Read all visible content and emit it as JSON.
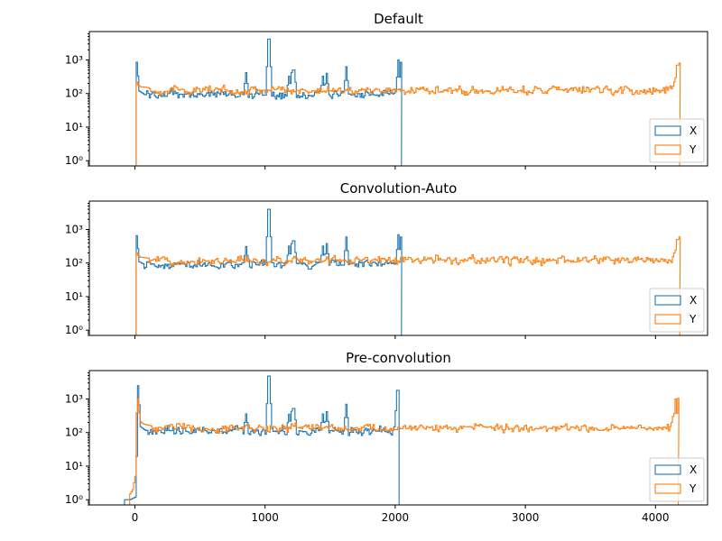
{
  "chart_data": [
    {
      "type": "histogram",
      "title": "Default",
      "scale_y": "log",
      "ylim": [
        0.7,
        7000
      ],
      "xlim": [
        -350,
        4400
      ],
      "xticks": [
        0,
        1000,
        2000,
        3000,
        4000
      ],
      "xtick_labels": [],
      "yticks": [
        1,
        10,
        100,
        1000
      ],
      "ytick_labels": [
        "10⁰",
        "10¹",
        "10²",
        "10³"
      ],
      "legend_position": "lower-right",
      "series": [
        {
          "name": "X",
          "color": "#1f77b4",
          "x_range": [
            0,
            2048
          ],
          "baseline": 95,
          "edge_profile": [
            [
              0,
              0.5
            ],
            [
              8,
              1000
            ],
            [
              16,
              550
            ],
            [
              28,
              120
            ],
            [
              60,
              100
            ]
          ],
          "spikes": [
            [
              850,
              420
            ],
            [
              1024,
              4200
            ],
            [
              1180,
              330
            ],
            [
              1200,
              420
            ],
            [
              1215,
              500
            ],
            [
              1440,
              330
            ],
            [
              1470,
              400
            ],
            [
              1620,
              630
            ],
            [
              2020,
              1000
            ],
            [
              2040,
              850
            ]
          ],
          "tail_end": 2048
        },
        {
          "name": "Y",
          "color": "#ff7f0e",
          "x_range": [
            0,
            4186
          ],
          "baseline": 125,
          "edge_profile": [
            [
              0,
              0.5
            ],
            [
              6,
              240
            ],
            [
              20,
              180
            ],
            [
              40,
              160
            ],
            [
              100,
              150
            ]
          ],
          "spikes": [
            [
              4140,
              220
            ],
            [
              4165,
              700
            ],
            [
              4180,
              800
            ]
          ],
          "tail_end": 4186
        }
      ]
    },
    {
      "type": "histogram",
      "title": "Convolution-Auto",
      "scale_y": "log",
      "ylim": [
        0.7,
        7000
      ],
      "xlim": [
        -350,
        4400
      ],
      "xticks": [
        0,
        1000,
        2000,
        3000,
        4000
      ],
      "xtick_labels": [],
      "yticks": [
        1,
        10,
        100,
        1000
      ],
      "ytick_labels": [
        "10⁰",
        "10¹",
        "10²",
        "10³"
      ],
      "legend_position": "lower-right",
      "series": [
        {
          "name": "X",
          "color": "#1f77b4",
          "x_range": [
            0,
            2048
          ],
          "baseline": 92,
          "edge_profile": [
            [
              0,
              0.5
            ],
            [
              8,
              750
            ],
            [
              16,
              420
            ],
            [
              28,
              110
            ],
            [
              60,
              95
            ]
          ],
          "spikes": [
            [
              850,
              310
            ],
            [
              1024,
              4000
            ],
            [
              1180,
              320
            ],
            [
              1200,
              380
            ],
            [
              1215,
              460
            ],
            [
              1440,
              320
            ],
            [
              1470,
              380
            ],
            [
              1620,
              600
            ],
            [
              2020,
              700
            ],
            [
              2040,
              600
            ]
          ],
          "tail_end": 2048
        },
        {
          "name": "Y",
          "color": "#ff7f0e",
          "x_range": [
            0,
            4186
          ],
          "baseline": 120,
          "edge_profile": [
            [
              0,
              0.5
            ],
            [
              6,
              220
            ],
            [
              20,
              170
            ],
            [
              40,
              150
            ],
            [
              100,
              140
            ]
          ],
          "spikes": [
            [
              4140,
              200
            ],
            [
              4165,
              500
            ],
            [
              4180,
              600
            ]
          ],
          "tail_end": 4186
        }
      ]
    },
    {
      "type": "histogram",
      "title": "Pre-convolution",
      "scale_y": "log",
      "ylim": [
        0.7,
        7000
      ],
      "xlim": [
        -350,
        4400
      ],
      "xticks": [
        0,
        1000,
        2000,
        3000,
        4000
      ],
      "xtick_labels": [
        "0",
        "1000",
        "2000",
        "3000",
        "4000"
      ],
      "yticks": [
        1,
        10,
        100,
        1000
      ],
      "ytick_labels": [
        "10⁰",
        "10¹",
        "10²",
        "10³"
      ],
      "legend_position": "lower-right",
      "series": [
        {
          "name": "X",
          "color": "#1f77b4",
          "x_range": [
            -80,
            2030
          ],
          "baseline": 110,
          "edge_profile": [
            [
              -80,
              1
            ],
            [
              -40,
              1
            ],
            [
              0,
              1.2
            ],
            [
              8,
              5
            ],
            [
              14,
              300
            ],
            [
              20,
              2500
            ],
            [
              28,
              900
            ],
            [
              40,
              150
            ],
            [
              80,
              115
            ]
          ],
          "spikes": [
            [
              850,
              360
            ],
            [
              1024,
              4800
            ],
            [
              1180,
              350
            ],
            [
              1200,
              430
            ],
            [
              1215,
              520
            ],
            [
              1440,
              360
            ],
            [
              1470,
              420
            ],
            [
              1620,
              700
            ],
            [
              2000,
              200
            ],
            [
              2015,
              1800
            ]
          ],
          "tail_end": 2030
        },
        {
          "name": "Y",
          "color": "#ff7f0e",
          "x_range": [
            -40,
            4175
          ],
          "baseline": 135,
          "edge_profile": [
            [
              -40,
              1.5
            ],
            [
              -20,
              2
            ],
            [
              0,
              5
            ],
            [
              6,
              20
            ],
            [
              12,
              1700
            ],
            [
              22,
              900
            ],
            [
              35,
              220
            ],
            [
              60,
              180
            ],
            [
              120,
              160
            ]
          ],
          "spikes": [
            [
              4130,
              300
            ],
            [
              4150,
              1000
            ],
            [
              4170,
              1050
            ]
          ],
          "tail_end": 4175
        }
      ]
    }
  ]
}
